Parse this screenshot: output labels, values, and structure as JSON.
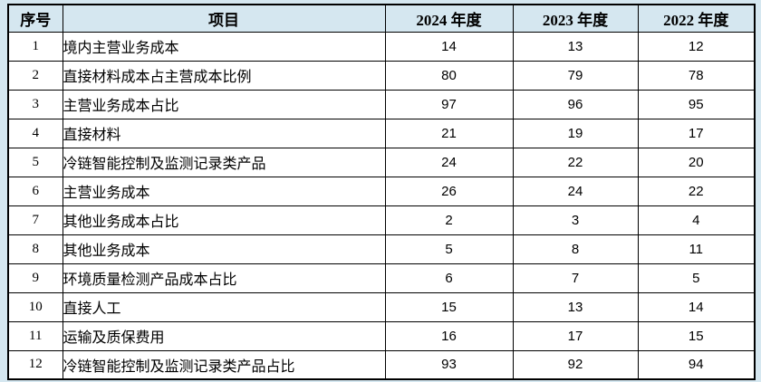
{
  "colors": {
    "page_background": "#d5e7f0",
    "header_background": "#d5e7f0",
    "row_background": "#ffffff",
    "border": "#000000",
    "text": "#000000"
  },
  "table": {
    "columns": [
      {
        "key": "no",
        "label": "序号"
      },
      {
        "key": "item",
        "label": "项目"
      },
      {
        "key": "y2024",
        "label": "2024 年度"
      },
      {
        "key": "y2023",
        "label": "2023 年度"
      },
      {
        "key": "y2022",
        "label": "2022 年度"
      }
    ],
    "rows": [
      {
        "no": "1",
        "item": "境内主营业务成本",
        "y2024": "14",
        "y2023": "13",
        "y2022": "12"
      },
      {
        "no": "2",
        "item": "直接材料成本占主营成本比例",
        "y2024": "80",
        "y2023": "79",
        "y2022": "78"
      },
      {
        "no": "3",
        "item": "主营业务成本占比",
        "y2024": "97",
        "y2023": "96",
        "y2022": "95"
      },
      {
        "no": "4",
        "item": "直接材料",
        "y2024": "21",
        "y2023": "19",
        "y2022": "17"
      },
      {
        "no": "5",
        "item": "冷链智能控制及监测记录类产品",
        "y2024": "24",
        "y2023": "22",
        "y2022": "20"
      },
      {
        "no": "6",
        "item": "主营业务成本",
        "y2024": "26",
        "y2023": "24",
        "y2022": "22"
      },
      {
        "no": "7",
        "item": "其他业务成本占比",
        "y2024": "2",
        "y2023": "3",
        "y2022": "4"
      },
      {
        "no": "8",
        "item": "其他业务成本",
        "y2024": "5",
        "y2023": "8",
        "y2022": "11"
      },
      {
        "no": "9",
        "item": "环境质量检测产品成本占比",
        "y2024": "6",
        "y2023": "7",
        "y2022": "5"
      },
      {
        "no": "10",
        "item": "直接人工",
        "y2024": "15",
        "y2023": "13",
        "y2022": "14"
      },
      {
        "no": "11",
        "item": "运输及质保费用",
        "y2024": "16",
        "y2023": "17",
        "y2022": "15"
      },
      {
        "no": "12",
        "item": "冷链智能控制及监测记录类产品占比",
        "y2024": "93",
        "y2023": "92",
        "y2022": "94"
      }
    ]
  }
}
